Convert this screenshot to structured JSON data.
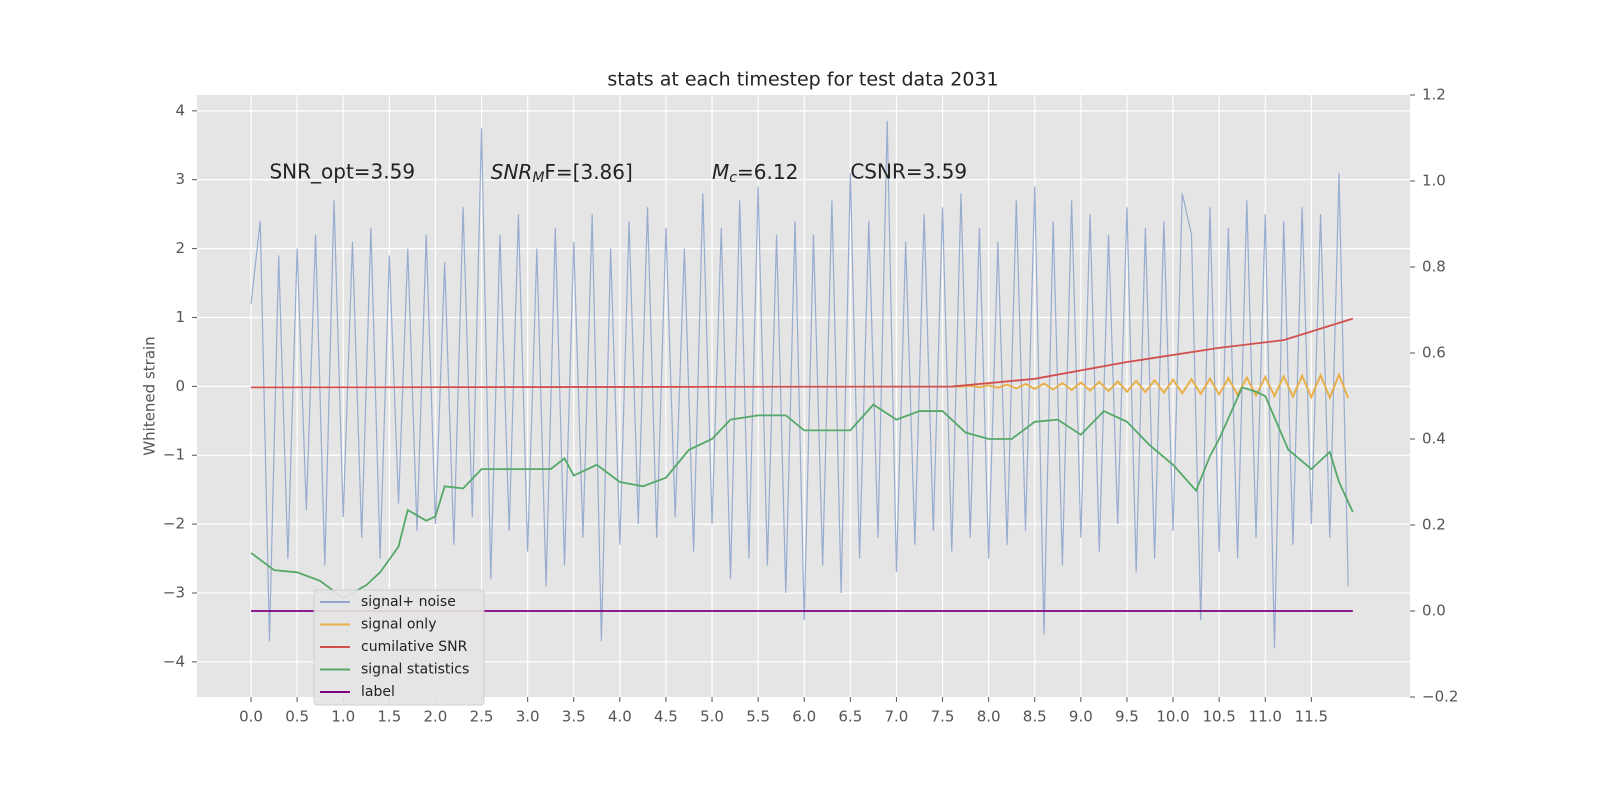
{
  "chart_data": {
    "type": "line",
    "title": "stats at each timestep for test data 2031",
    "ylabel": "Whitened strain",
    "annotations": [
      {
        "text": "SNR_opt=3.59",
        "x": 0.2,
        "y": 3.1
      },
      {
        "main": "SNR",
        "sub": "M",
        "rest": "F=[3.86]",
        "x": 2.6,
        "y": 3.1
      },
      {
        "main": "M",
        "sub": "c",
        "rest": "=6.12",
        "x": 5.0,
        "y": 3.1
      },
      {
        "text": "CSNR=3.59",
        "x": 6.5,
        "y": 3.1
      }
    ],
    "xlim": [
      -0.586,
      12.57
    ],
    "xticks": [
      {
        "value": 0,
        "label": "0.0"
      },
      0.5,
      {
        "value": 1,
        "label": "1.0"
      },
      1.5,
      {
        "value": 2,
        "label": "2.0"
      },
      2.5,
      {
        "value": 3,
        "label": "3.0"
      },
      3.5,
      {
        "value": 4,
        "label": "4.0"
      },
      4.5,
      {
        "value": 5,
        "label": "5.0"
      },
      5.5,
      {
        "value": 6,
        "label": "6.0"
      },
      6.5,
      {
        "value": 7,
        "label": "7.0"
      },
      7.5,
      {
        "value": 8,
        "label": "8.0"
      },
      8.5,
      {
        "value": 9,
        "label": "9.0"
      },
      9.5,
      {
        "value": 10,
        "label": "10.0"
      },
      10.5,
      {
        "value": 11,
        "label": "11.0"
      },
      11.5
    ],
    "ylim": [
      -4.51,
      4.23
    ],
    "yticks": [
      {
        "value": -4,
        "label": "−4"
      },
      {
        "value": -3,
        "label": "−3"
      },
      {
        "value": -2,
        "label": "−2"
      },
      {
        "value": -1,
        "label": "−1"
      },
      0,
      1,
      2,
      3,
      4
    ],
    "y2lim": [
      -0.2,
      1.2
    ],
    "y2ticks": [
      {
        "value": -0.2,
        "label": "−0.2"
      },
      {
        "value": 0,
        "label": "0.0"
      },
      0.2,
      0.4,
      0.6,
      0.8,
      {
        "value": 1,
        "label": "1.0"
      },
      1.2
    ],
    "grid": true,
    "legend": "lower left",
    "series": [
      {
        "name": "signal+ noise",
        "color": "#8fa5cc",
        "x": [
          0.0,
          0.1,
          0.2,
          0.3,
          0.4,
          0.5,
          0.6,
          0.7,
          0.8,
          0.9,
          1.0,
          1.1,
          1.2,
          1.3,
          1.4,
          1.5,
          1.6,
          1.7,
          1.8,
          1.9,
          2.0,
          2.1,
          2.2,
          2.3,
          2.4,
          2.5,
          2.6,
          2.7,
          2.8,
          2.9,
          3.0,
          3.1,
          3.2,
          3.3,
          3.4,
          3.5,
          3.6,
          3.7,
          3.8,
          3.9,
          4.0,
          4.1,
          4.2,
          4.3,
          4.4,
          4.5,
          4.6,
          4.7,
          4.8,
          4.9,
          5.0,
          5.1,
          5.2,
          5.3,
          5.4,
          5.5,
          5.6,
          5.7,
          5.8,
          5.9,
          6.0,
          6.1,
          6.2,
          6.3,
          6.4,
          6.5,
          6.6,
          6.7,
          6.8,
          6.9,
          7.0,
          7.1,
          7.2,
          7.3,
          7.4,
          7.5,
          7.6,
          7.7,
          7.8,
          7.9,
          8.0,
          8.1,
          8.2,
          8.3,
          8.4,
          8.5,
          8.6,
          8.7,
          8.8,
          8.9,
          9.0,
          9.1,
          9.2,
          9.3,
          9.4,
          9.5,
          9.6,
          9.7,
          9.8,
          9.9,
          10.0,
          10.1,
          10.2,
          10.3,
          10.4,
          10.5,
          10.6,
          10.7,
          10.8,
          10.9,
          11.0,
          11.1,
          11.2,
          11.3,
          11.4,
          11.5,
          11.6,
          11.7,
          11.8,
          11.9
        ],
        "values": [
          1.2,
          2.4,
          -3.7,
          1.9,
          -2.5,
          2.0,
          -1.8,
          2.2,
          -2.6,
          2.7,
          -1.9,
          2.1,
          -2.2,
          2.3,
          -2.5,
          1.9,
          -1.7,
          2.0,
          -2.1,
          2.2,
          -2.0,
          1.8,
          -2.3,
          2.6,
          -1.9,
          3.75,
          -2.8,
          2.2,
          -2.1,
          2.5,
          -2.4,
          2.0,
          -2.9,
          2.3,
          -2.6,
          2.1,
          -2.2,
          2.5,
          -3.7,
          2.0,
          -2.3,
          2.4,
          -2.0,
          2.6,
          -2.2,
          2.3,
          -1.9,
          2.0,
          -2.4,
          2.8,
          -2.0,
          2.3,
          -2.8,
          2.7,
          -2.5,
          2.9,
          -2.6,
          2.2,
          -3.0,
          2.4,
          -3.4,
          2.2,
          -2.6,
          2.7,
          -3.0,
          3.1,
          -2.5,
          2.4,
          -2.2,
          3.85,
          -2.7,
          2.1,
          -2.3,
          2.5,
          -2.1,
          2.6,
          -2.4,
          2.8,
          -2.2,
          2.3,
          -2.5,
          2.1,
          -2.3,
          2.7,
          -2.1,
          2.9,
          -3.6,
          2.4,
          -2.6,
          2.7,
          -2.2,
          2.5,
          -2.4,
          2.2,
          -2.0,
          2.6,
          -2.7,
          2.3,
          -2.5,
          2.4,
          -2.1,
          2.8,
          2.2,
          -3.4,
          2.6,
          -2.4,
          2.3,
          -2.5,
          2.7,
          -2.2,
          2.5,
          -3.8,
          2.4,
          -2.3,
          2.6,
          -2.0,
          2.5,
          -2.2,
          3.1,
          -2.9
        ]
      },
      {
        "name": "signal only",
        "color": "#e8b04a",
        "x": [
          7.6,
          7.7,
          7.8,
          7.9,
          8.0,
          8.1,
          8.2,
          8.3,
          8.4,
          8.5,
          8.6,
          8.7,
          8.8,
          8.9,
          9.0,
          9.1,
          9.2,
          9.3,
          9.4,
          9.5,
          9.6,
          9.7,
          9.8,
          9.9,
          10.0,
          10.1,
          10.2,
          10.3,
          10.4,
          10.5,
          10.6,
          10.7,
          10.8,
          10.9,
          11.0,
          11.1,
          11.2,
          11.3,
          11.4,
          11.5,
          11.6,
          11.7,
          11.8,
          11.9
        ],
        "values": [
          0,
          -0.004,
          0.008,
          -0.012,
          0.016,
          -0.02,
          0.024,
          -0.028,
          0.032,
          -0.036,
          0.04,
          -0.044,
          0.048,
          -0.052,
          0.056,
          -0.06,
          0.064,
          -0.068,
          0.072,
          -0.076,
          0.08,
          -0.084,
          0.088,
          -0.092,
          0.096,
          -0.1,
          0.104,
          -0.108,
          0.112,
          -0.116,
          0.12,
          -0.124,
          0.128,
          -0.132,
          0.136,
          -0.14,
          0.144,
          -0.148,
          0.152,
          -0.156,
          0.16,
          -0.164,
          0.168,
          -0.172
        ]
      },
      {
        "name": "cumilative SNR",
        "color": "#d1504c",
        "axis": "y2",
        "x": [
          0,
          7.6,
          8.5,
          9.5,
          10.5,
          11.2,
          11.95
        ],
        "values": [
          0.52,
          0.522,
          0.54,
          0.579,
          0.612,
          0.63,
          0.68
        ]
      },
      {
        "name": "signal statistics",
        "color": "#55a868",
        "axis": "y2",
        "x": [
          0,
          0.25,
          0.5,
          0.75,
          1.0,
          1.25,
          1.4,
          1.6,
          1.7,
          1.9,
          2.0,
          2.1,
          2.3,
          2.5,
          2.75,
          3.0,
          3.25,
          3.4,
          3.5,
          3.75,
          4.0,
          4.25,
          4.5,
          4.75,
          5.0,
          5.2,
          5.5,
          5.8,
          6.0,
          6.25,
          6.5,
          6.75,
          7.0,
          7.25,
          7.5,
          7.75,
          8.0,
          8.25,
          8.5,
          8.75,
          9.0,
          9.25,
          9.5,
          9.75,
          10.0,
          10.25,
          10.4,
          10.5,
          10.75,
          10.9,
          11.0,
          11.25,
          11.5,
          11.7,
          11.8,
          11.95
        ],
        "values": [
          0.135,
          0.095,
          0.09,
          0.07,
          0.03,
          0.06,
          0.09,
          0.15,
          0.235,
          0.21,
          0.22,
          0.29,
          0.285,
          0.33,
          0.33,
          0.33,
          0.33,
          0.355,
          0.315,
          0.34,
          0.3,
          0.29,
          0.31,
          0.375,
          0.4,
          0.445,
          0.455,
          0.455,
          0.42,
          0.42,
          0.42,
          0.48,
          0.445,
          0.465,
          0.465,
          0.415,
          0.4,
          0.4,
          0.44,
          0.445,
          0.41,
          0.465,
          0.44,
          0.385,
          0.34,
          0.28,
          0.36,
          0.4,
          0.52,
          0.51,
          0.5,
          0.375,
          0.33,
          0.37,
          0.3,
          0.23
        ]
      },
      {
        "name": "label",
        "color": "#800080",
        "axis": "y2",
        "x": [
          0,
          11.95
        ],
        "values": [
          0,
          0
        ]
      }
    ]
  }
}
